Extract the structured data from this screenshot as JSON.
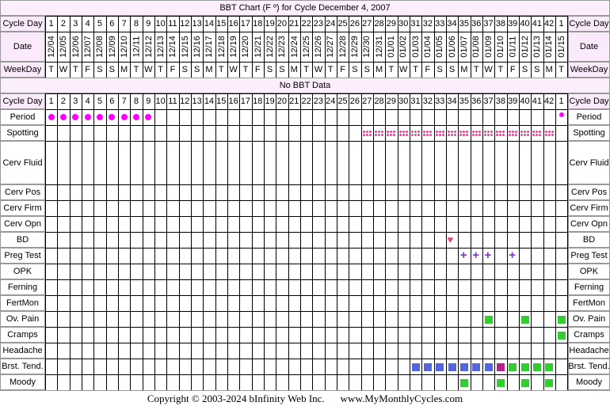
{
  "title": "BBT Chart (F º) for Cycle December 4, 2007",
  "no_data": "No BBT Data",
  "labels": {
    "cycle_day": "Cycle Day",
    "date": "Date",
    "weekday": "WeekDay",
    "rows": [
      "Period",
      "Spotting",
      "Cerv Fluid",
      "Cerv Pos",
      "Cerv Firm",
      "Cerv Opn",
      "BD",
      "Preg Test",
      "OPK",
      "Ferning",
      "FertMon",
      "Ov. Pain",
      "Cramps",
      "Headache",
      "Brst. Tend.",
      "Moody"
    ]
  },
  "days": [
    "1",
    "2",
    "3",
    "4",
    "5",
    "6",
    "7",
    "8",
    "9",
    "10",
    "11",
    "12",
    "13",
    "14",
    "15",
    "16",
    "17",
    "18",
    "19",
    "20",
    "21",
    "22",
    "23",
    "24",
    "25",
    "26",
    "27",
    "28",
    "29",
    "30",
    "31",
    "32",
    "33",
    "34",
    "35",
    "36",
    "37",
    "38",
    "39",
    "40",
    "41",
    "42",
    "1"
  ],
  "dates": [
    "12/04",
    "12/05",
    "12/06",
    "12/07",
    "12/08",
    "12/09",
    "12/10",
    "12/11",
    "12/12",
    "12/13",
    "12/14",
    "12/15",
    "12/16",
    "12/17",
    "12/18",
    "12/19",
    "12/20",
    "12/21",
    "12/22",
    "12/23",
    "12/24",
    "12/25",
    "12/26",
    "12/27",
    "12/28",
    "12/29",
    "12/30",
    "12/31",
    "01/01",
    "01/02",
    "01/03",
    "01/04",
    "01/05",
    "01/06",
    "01/07",
    "01/08",
    "01/09",
    "01/10",
    "01/11",
    "01/12",
    "01/13",
    "01/14",
    "01/15"
  ],
  "weekdays": [
    "T",
    "W",
    "T",
    "F",
    "S",
    "S",
    "M",
    "T",
    "W",
    "T",
    "F",
    "S",
    "S",
    "M",
    "T",
    "W",
    "T",
    "F",
    "S",
    "S",
    "M",
    "T",
    "W",
    "T",
    "F",
    "S",
    "S",
    "M",
    "T",
    "W",
    "T",
    "F",
    "S",
    "S",
    "M",
    "T",
    "W",
    "T",
    "F",
    "S",
    "S",
    "M",
    "T"
  ],
  "marks": {
    "period": [
      0,
      1,
      2,
      3,
      4,
      5,
      6,
      7,
      8
    ],
    "period_small": [
      42
    ],
    "spotting": [
      26,
      27,
      28,
      29,
      30,
      31,
      32,
      33,
      34,
      35,
      36,
      37,
      38,
      39,
      40,
      41
    ],
    "bd": [
      33
    ],
    "preg_test": [
      34,
      35,
      36,
      38
    ],
    "ov_pain": [
      36,
      39,
      42
    ],
    "cramps": [
      42
    ],
    "brst_tend_blue": [
      30,
      31,
      32,
      33,
      34,
      35,
      36
    ],
    "brst_tend_purple": [
      37
    ],
    "brst_tend_green": [
      38,
      39,
      40,
      41
    ],
    "moody": [
      34,
      37,
      39,
      41
    ]
  },
  "colors": {
    "period": "#ff00ff",
    "spotting": "#e8459c",
    "heart": "#e6438c",
    "plus": "#7a38c8",
    "green": "#33cc33",
    "blue": "#5566dd",
    "purple": "#bb2288",
    "header_bg": "#fbeafb"
  },
  "footer": {
    "copyright": "Copyright © 2003-2024 bInfinity Web Inc.",
    "site": "www.MyMonthlyCycles.com"
  }
}
